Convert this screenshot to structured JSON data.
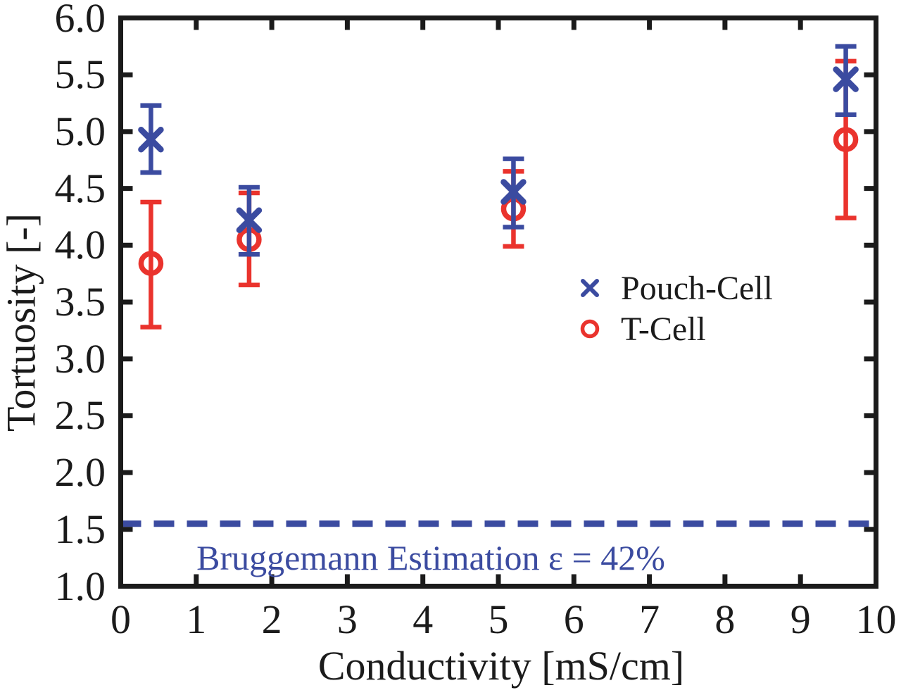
{
  "chart_data": {
    "type": "scatter",
    "title": "",
    "xlabel": "Conductivity [mS/cm]",
    "ylabel": "Tortuosity [-]",
    "xlim": [
      0,
      10
    ],
    "ylim": [
      1.0,
      6.0
    ],
    "grid": false,
    "box": true,
    "x_tick_labels": [
      "0",
      "1",
      "2",
      "3",
      "4",
      "5",
      "6",
      "7",
      "8",
      "9",
      "10"
    ],
    "y_tick_labels": [
      "1.0",
      "1.5",
      "2.0",
      "2.5",
      "3.0",
      "3.5",
      "4.0",
      "4.5",
      "5.0",
      "5.5",
      "6.0"
    ],
    "legend_position": "middle-right",
    "series": [
      {
        "name": "Pouch-Cell",
        "marker": "x",
        "color": "#3b4ba0",
        "x": [
          0.4,
          1.7,
          5.2,
          9.6
        ],
        "y": [
          4.93,
          4.22,
          4.47,
          5.46
        ],
        "y_err_low": [
          4.64,
          3.92,
          4.16,
          5.15
        ],
        "y_err_high": [
          5.23,
          4.51,
          4.76,
          5.75
        ]
      },
      {
        "name": "T-Cell",
        "marker": "o",
        "color": "#ea332d",
        "x": [
          0.4,
          1.7,
          5.2,
          9.6
        ],
        "y": [
          3.84,
          4.05,
          4.32,
          4.93
        ],
        "y_err_low": [
          3.28,
          3.65,
          3.99,
          4.24
        ],
        "y_err_high": [
          4.38,
          4.46,
          4.65,
          5.62
        ]
      }
    ],
    "reference_line": {
      "y": 1.55,
      "style": "dashed",
      "color": "#3b4ba0",
      "label": "Bruggemann Estimation ε = 42%"
    },
    "frame_color": "#1b1b1b",
    "background": "#ffffff"
  }
}
